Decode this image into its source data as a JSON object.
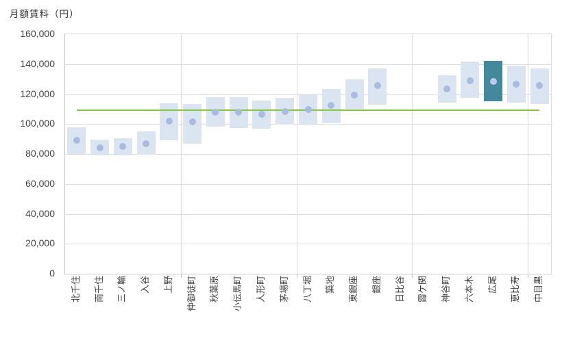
{
  "chart_title": "月額賃料（円）",
  "chart_data": {
    "type": "bar",
    "subtype": "floating-range-bars-with-mean-dots",
    "title": "月額賃料（円）",
    "xlabel": "",
    "ylabel": "月額賃料（円）",
    "ylim": [
      0,
      160000
    ],
    "ytick_step": 20000,
    "y_tick_labels": [
      "0",
      "20,000",
      "40,000",
      "60,000",
      "80,000",
      "100,000",
      "120,000",
      "140,000",
      "160,000"
    ],
    "grid": true,
    "legend": "none",
    "categories": [
      "北千住",
      "南千住",
      "三ノ輪",
      "入谷",
      "上野",
      "仲御徒町",
      "秋葉原",
      "小伝馬町",
      "人形町",
      "茅場町",
      "八丁堀",
      "築地",
      "東銀座",
      "銀座",
      "日比谷",
      "霞ケ関",
      "神谷町",
      "六本木",
      "広尾",
      "恵比寿",
      "中目黒"
    ],
    "series": [
      {
        "name": "range_low",
        "values": [
          80000,
          79000,
          79000,
          79500,
          89000,
          87000,
          98500,
          97500,
          97000,
          99500,
          100000,
          100500,
          110000,
          113000,
          null,
          null,
          114500,
          117500,
          115000,
          114500,
          113500
        ]
      },
      {
        "name": "range_high",
        "values": [
          98000,
          89500,
          90500,
          95000,
          114000,
          113500,
          118000,
          118000,
          115500,
          117500,
          119500,
          123500,
          130000,
          137000,
          null,
          null,
          132500,
          141500,
          142000,
          139000,
          137000
        ]
      },
      {
        "name": "mean",
        "values": [
          89000,
          84000,
          85000,
          87000,
          102000,
          101500,
          108000,
          108000,
          106500,
          108500,
          109500,
          112500,
          119500,
          125500,
          null,
          null,
          123500,
          129000,
          128500,
          126500,
          125500
        ]
      }
    ],
    "reference_line": {
      "value": 109400
    },
    "highlight_category": "広尾",
    "vertical_gridline_interval": 5
  },
  "colors": {
    "bar_fill": "#dbe5f2",
    "bar_highlight": "#44889e",
    "mean_dot": "#a9bbdf",
    "mean_dot_highlight": "#bdcaec",
    "reference_line": "#85c43e",
    "gridline": "#d9d9d9",
    "axis_line": "#c6c6c6",
    "text": "#3f3f3f"
  }
}
